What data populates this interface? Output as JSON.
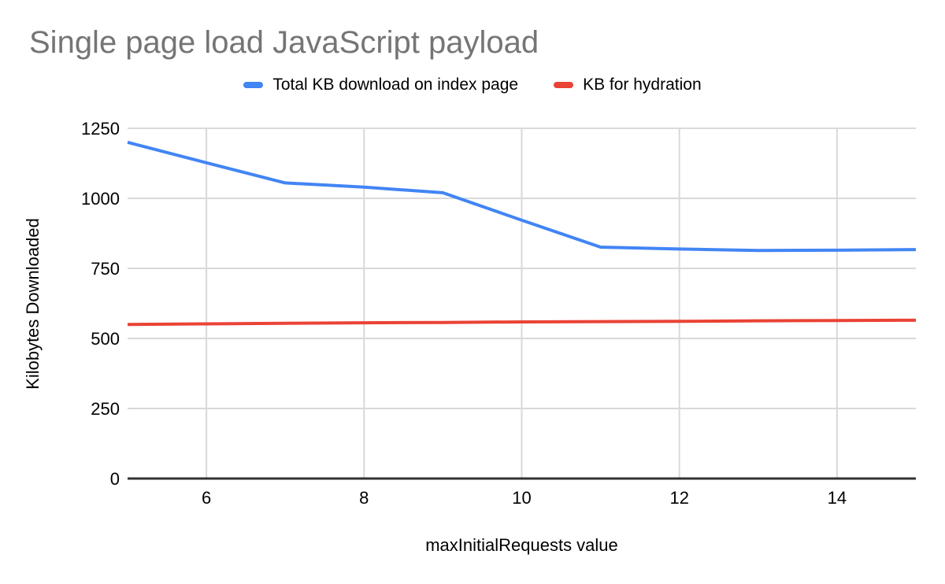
{
  "title": {
    "text": "Single page load JavaScript payload",
    "color": "#757575"
  },
  "chart_data": {
    "type": "line",
    "x": [
      5,
      6,
      7,
      8,
      9,
      10,
      11,
      12,
      13,
      14,
      15
    ],
    "series": [
      {
        "name": "Total KB download on index page",
        "color": "#4285F4",
        "values": [
          1200,
          1127,
          1055,
          1040,
          1020,
          922,
          826,
          819,
          814,
          815,
          817
        ]
      },
      {
        "name": "KB for hydration",
        "color": "#EA4335",
        "values": [
          550,
          552,
          554,
          556,
          557,
          559,
          560,
          561,
          563,
          564,
          565
        ]
      }
    ],
    "xlabel": "maxInitialRequests value",
    "ylabel": "Kilobytes Downloaded",
    "x_ticks": [
      6,
      8,
      10,
      12,
      14
    ],
    "y_ticks": [
      0,
      250,
      500,
      750,
      1000,
      1250
    ],
    "x_range": [
      5,
      15
    ],
    "y_range": [
      0,
      1250
    ],
    "legend_position": "top",
    "grid": true,
    "gridline_color": "#d9d9d9",
    "axis_line_color": "#333333"
  }
}
